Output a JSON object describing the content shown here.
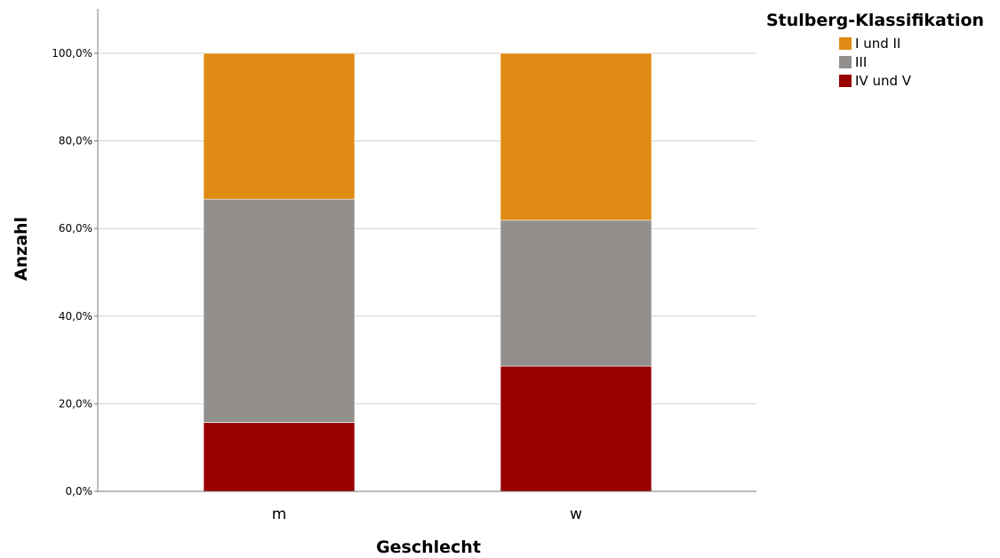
{
  "chart_data": {
    "type": "bar",
    "stacked": true,
    "categories": [
      "m",
      "w"
    ],
    "series": [
      {
        "name": "IV und V",
        "color": "#990000",
        "values": [
          15.7,
          28.6
        ]
      },
      {
        "name": "III",
        "color": "#938f8c",
        "values": [
          51.0,
          33.3
        ]
      },
      {
        "name": "I und II",
        "color": "#e08b13",
        "values": [
          33.3,
          38.1
        ]
      }
    ],
    "xlabel": "Geschlecht",
    "ylabel": "Anzahl",
    "ylim": [
      0,
      100
    ],
    "yticks": [
      "0,0%",
      "20,0%",
      "40,0%",
      "60,0%",
      "80,0%",
      "100,0%"
    ],
    "grid": true,
    "legend": {
      "title": "Stulberg-Klassifikation",
      "position": "top-right",
      "items": [
        {
          "label": "I und II",
          "color": "#e08b13"
        },
        {
          "label": "III",
          "color": "#938f8c"
        },
        {
          "label": "IV und V",
          "color": "#990000"
        }
      ]
    }
  }
}
